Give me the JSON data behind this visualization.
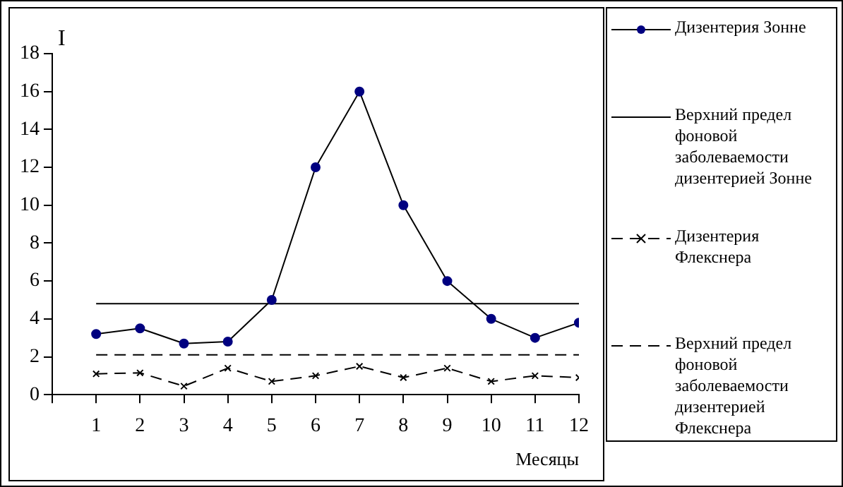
{
  "chart_data": {
    "type": "line",
    "xlabel": "Месяцы",
    "ylabel": "I",
    "x": [
      1,
      2,
      3,
      4,
      5,
      6,
      7,
      8,
      9,
      10,
      11,
      12
    ],
    "xlim": [
      0,
      12
    ],
    "xticks": [
      {
        "value": 0,
        "label": null
      },
      1,
      2,
      3,
      4,
      5,
      6,
      7,
      8,
      9,
      10,
      11,
      12
    ],
    "ylim": [
      0,
      18
    ],
    "yticks": [
      0,
      2,
      4,
      6,
      8,
      10,
      12,
      14,
      16,
      18
    ],
    "grid": false,
    "legend": "right",
    "series": [
      {
        "name": "Дизентерия Зонне",
        "color": "#000080",
        "marker": "circle",
        "line_style": "solid",
        "values": [
          3.2,
          3.5,
          2.7,
          2.8,
          5,
          12,
          16,
          10,
          6,
          4,
          3,
          3.8
        ]
      },
      {
        "name": "Верхний предел фоновой заболеваемости дизентерией Зонне",
        "color": "#000000",
        "marker": "none",
        "line_style": "solid",
        "values": [
          4.8,
          4.8,
          4.8,
          4.8,
          4.8,
          4.8,
          4.8,
          4.8,
          4.8,
          4.8,
          4.8,
          4.8
        ]
      },
      {
        "name": "Дизентерия Флекснера",
        "color": "#000000",
        "marker": "cross",
        "line_style": "dashed",
        "values": [
          1.1,
          1.15,
          0.45,
          1.4,
          0.7,
          1,
          1.5,
          0.9,
          1.4,
          0.7,
          1,
          0.9
        ]
      },
      {
        "name": "Верхний предел фоновой заболеваемости дизентерией Флекснера",
        "color": "#000000",
        "marker": "none",
        "line_style": "dashed",
        "values": [
          2.1,
          2.1,
          2.1,
          2.1,
          2.1,
          2.1,
          2.1,
          2.1,
          2.1,
          2.1,
          2.1,
          2.1
        ]
      }
    ]
  }
}
